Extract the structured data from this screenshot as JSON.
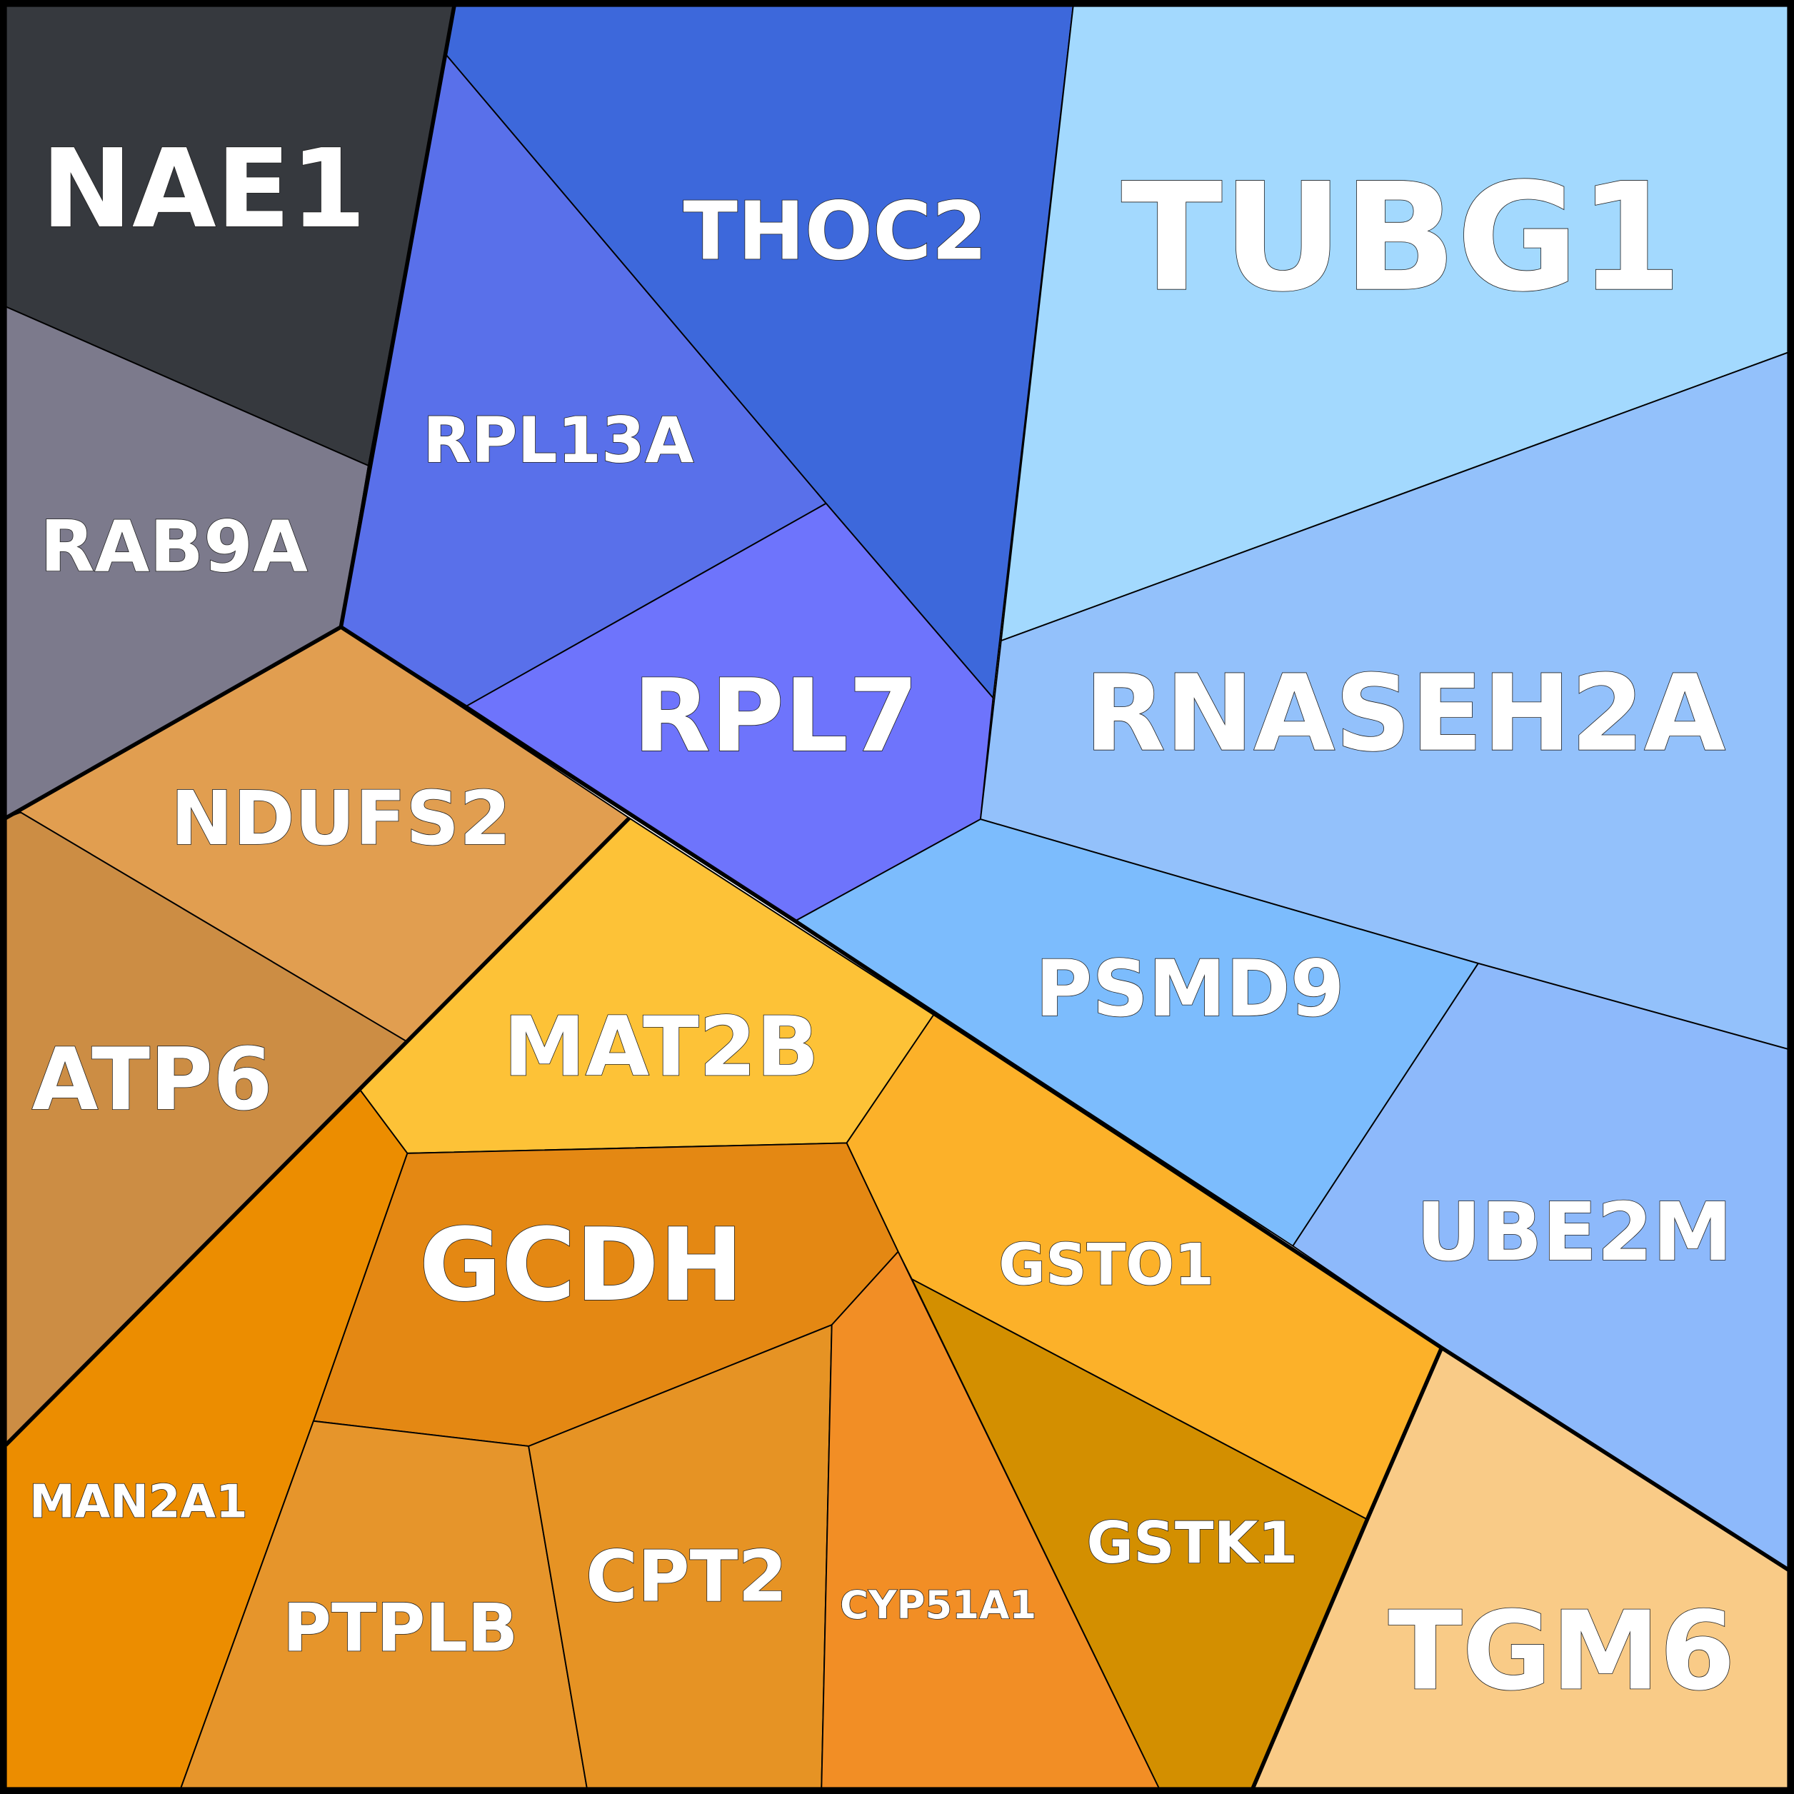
{
  "cells": [
    {
      "label": "NAE1"
    },
    {
      "label": "RAB9A"
    },
    {
      "label": "THOC2"
    },
    {
      "label": "RPL13A"
    },
    {
      "label": "RPL7"
    },
    {
      "label": "TUBG1"
    },
    {
      "label": "RNASEH2A"
    },
    {
      "label": "PSMD9"
    },
    {
      "label": "UBE2M"
    },
    {
      "label": "TGM6"
    },
    {
      "label": "NDUFS2"
    },
    {
      "label": "ATP6"
    },
    {
      "label": "MAT2B"
    },
    {
      "label": "GSTO1"
    },
    {
      "label": "GSTK1"
    },
    {
      "label": "GCDH"
    },
    {
      "label": "MAN2A1"
    },
    {
      "label": "PTPLB"
    },
    {
      "label": "CPT2"
    },
    {
      "label": "CYP51A1"
    }
  ]
}
